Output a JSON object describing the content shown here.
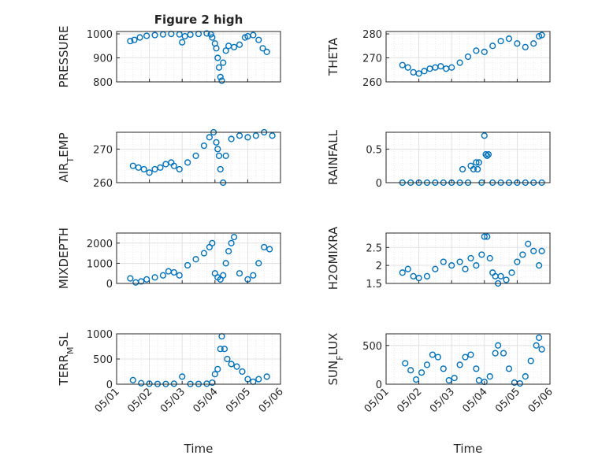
{
  "figure": {
    "title": "Figure 2 high",
    "xlabel": "Time",
    "date_ticks": [
      "05/01",
      "05/02",
      "05/03",
      "05/04",
      "05/05",
      "05/06"
    ],
    "marker_color": "#0072BD",
    "grid": true
  },
  "chart_data": [
    {
      "type": "scatter",
      "name": "pressure",
      "ylabel": "PRESSURE",
      "ylabel_sub": "",
      "ylabel_tail": "",
      "title": "Figure 2 high",
      "xlim": [
        "05/01",
        "05/06"
      ],
      "ylim": [
        800,
        1010
      ],
      "yticks": [
        800,
        900,
        1000
      ],
      "x": [
        "05/01 10:00",
        "05/01 13:00",
        "05/01 17:00",
        "05/01 22:00",
        "05/02 04:00",
        "05/02 10:00",
        "05/02 16:00",
        "05/02 22:00",
        "05/03 00:00",
        "05/03 02:00",
        "05/03 06:00",
        "05/03 12:00",
        "05/03 18:00",
        "05/03 21:00",
        "05/03 22:00",
        "05/04 00:00",
        "05/04 01:00",
        "05/04 02:00",
        "05/04 03:00",
        "05/04 04:00",
        "05/04 05:00",
        "05/04 06:00",
        "05/04 08:00",
        "05/04 10:00",
        "05/04 14:00",
        "05/04 18:00",
        "05/04 22:00",
        "05/05 00:00",
        "05/05 04:00",
        "05/05 08:00",
        "05/05 11:00",
        "05/05 14:00"
      ],
      "y": [
        970,
        975,
        985,
        992,
        995,
        998,
        1000,
        998,
        965,
        990,
        997,
        1000,
        1002,
        998,
        985,
        960,
        940,
        900,
        860,
        820,
        805,
        880,
        930,
        950,
        945,
        955,
        985,
        990,
        995,
        975,
        940,
        925
      ]
    },
    {
      "type": "scatter",
      "name": "theta",
      "ylabel": "THETA",
      "ylabel_sub": "",
      "ylabel_tail": "",
      "xlim": [
        "05/01",
        "05/06"
      ],
      "ylim": [
        260,
        281
      ],
      "yticks": [
        260,
        270,
        280
      ],
      "x": [
        "05/01 12:00",
        "05/01 16:00",
        "05/01 20:00",
        "05/02 00:00",
        "05/02 04:00",
        "05/02 08:00",
        "05/02 12:00",
        "05/02 16:00",
        "05/02 20:00",
        "05/03 00:00",
        "05/03 06:00",
        "05/03 12:00",
        "05/03 18:00",
        "05/04 00:00",
        "05/04 06:00",
        "05/04 12:00",
        "05/04 18:00",
        "05/05 00:00",
        "05/05 06:00",
        "05/05 12:00",
        "05/05 16:00",
        "05/05 18:00"
      ],
      "y": [
        267,
        266,
        264,
        263.5,
        264.5,
        265.5,
        266,
        266.5,
        265.5,
        266,
        268,
        270.5,
        273,
        272.5,
        275,
        277,
        278,
        276,
        274.5,
        276,
        279,
        279.5
      ]
    },
    {
      "type": "scatter",
      "name": "air_temp",
      "ylabel": "AIR",
      "ylabel_sub": "T",
      "ylabel_tail": "EMP",
      "xlim": [
        "05/01",
        "05/06"
      ],
      "ylim": [
        260,
        275
      ],
      "yticks": [
        260,
        270
      ],
      "x": [
        "05/01 12:00",
        "05/01 16:00",
        "05/01 20:00",
        "05/02 00:00",
        "05/02 04:00",
        "05/02 08:00",
        "05/02 12:00",
        "05/02 16:00",
        "05/02 18:00",
        "05/02 22:00",
        "05/03 04:00",
        "05/03 10:00",
        "05/03 16:00",
        "05/03 20:00",
        "05/03 23:00",
        "05/04 01:00",
        "05/04 02:00",
        "05/04 03:00",
        "05/04 04:00",
        "05/04 06:00",
        "05/04 08:00",
        "05/04 12:00",
        "05/04 18:00",
        "05/05 00:00",
        "05/05 06:00",
        "05/05 12:00",
        "05/05 18:00"
      ],
      "y": [
        265,
        264.5,
        264,
        263,
        264,
        264.5,
        265.5,
        266,
        265,
        264,
        266,
        268,
        271,
        273.5,
        275,
        272,
        270,
        268,
        264,
        260,
        268,
        273,
        274,
        273.5,
        274,
        275,
        274
      ]
    },
    {
      "type": "scatter",
      "name": "rainfall",
      "ylabel": "RAINFALL",
      "ylabel_sub": "",
      "ylabel_tail": "",
      "xlim": [
        "05/01",
        "05/06"
      ],
      "ylim": [
        0,
        0.75
      ],
      "yticks": [
        0,
        0.5
      ],
      "x": [
        "05/01 12:00",
        "05/01 18:00",
        "05/02 00:00",
        "05/02 06:00",
        "05/02 12:00",
        "05/02 18:00",
        "05/03 00:00",
        "05/03 06:00",
        "05/03 08:00",
        "05/03 12:00",
        "05/03 14:00",
        "05/03 16:00",
        "05/03 18:00",
        "05/03 19:00",
        "05/03 20:00",
        "05/03 22:00",
        "05/04 00:00",
        "05/04 01:00",
        "05/04 02:00",
        "05/04 03:00",
        "05/04 06:00",
        "05/04 12:00",
        "05/04 18:00",
        "05/05 00:00",
        "05/05 06:00",
        "05/05 12:00",
        "05/05 18:00"
      ],
      "y": [
        0,
        0,
        0,
        0,
        0,
        0,
        0,
        0,
        0.2,
        0,
        0.25,
        0.2,
        0.3,
        0.2,
        0.3,
        0,
        0.7,
        0.42,
        0.4,
        0.42,
        0,
        0,
        0,
        0,
        0,
        0,
        0
      ]
    },
    {
      "type": "scatter",
      "name": "mixdepth",
      "ylabel": "MIXDEPTH",
      "ylabel_sub": "",
      "ylabel_tail": "",
      "xlim": [
        "05/01",
        "05/06"
      ],
      "ylim": [
        0,
        2500
      ],
      "yticks": [
        0,
        1000,
        2000
      ],
      "x": [
        "05/01 10:00",
        "05/01 14:00",
        "05/01 18:00",
        "05/01 22:00",
        "05/02 04:00",
        "05/02 10:00",
        "05/02 14:00",
        "05/02 18:00",
        "05/02 22:00",
        "05/03 04:00",
        "05/03 10:00",
        "05/03 16:00",
        "05/03 20:00",
        "05/03 22:00",
        "05/04 00:00",
        "05/04 02:00",
        "05/04 04:00",
        "05/04 06:00",
        "05/04 08:00",
        "05/04 10:00",
        "05/04 12:00",
        "05/04 14:00",
        "05/04 18:00",
        "05/05 00:00",
        "05/05 04:00",
        "05/05 08:00",
        "05/05 12:00",
        "05/05 16:00"
      ],
      "y": [
        250,
        50,
        100,
        200,
        300,
        400,
        600,
        550,
        400,
        900,
        1200,
        1500,
        1800,
        2000,
        500,
        300,
        200,
        400,
        1000,
        1600,
        2000,
        2300,
        500,
        200,
        400,
        1000,
        1800,
        1700
      ]
    },
    {
      "type": "scatter",
      "name": "h2omixra",
      "ylabel": "H2OMIXRA",
      "ylabel_sub": "",
      "ylabel_tail": "",
      "xlim": [
        "05/01",
        "05/06"
      ],
      "ylim": [
        1.5,
        2.9
      ],
      "yticks": [
        1.5,
        2,
        2.5
      ],
      "x": [
        "05/01 12:00",
        "05/01 16:00",
        "05/01 20:00",
        "05/02 00:00",
        "05/02 06:00",
        "05/02 12:00",
        "05/02 18:00",
        "05/03 00:00",
        "05/03 06:00",
        "05/03 10:00",
        "05/03 14:00",
        "05/03 18:00",
        "05/03 22:00",
        "05/04 00:00",
        "05/04 02:00",
        "05/04 04:00",
        "05/04 06:00",
        "05/04 08:00",
        "05/04 10:00",
        "05/04 12:00",
        "05/04 16:00",
        "05/04 20:00",
        "05/05 00:00",
        "05/05 04:00",
        "05/05 08:00",
        "05/05 12:00",
        "05/05 16:00",
        "05/05 18:00"
      ],
      "y": [
        1.8,
        1.9,
        1.7,
        1.65,
        1.7,
        1.9,
        2.1,
        2.0,
        2.1,
        1.9,
        2.2,
        2.0,
        2.3,
        2.8,
        2.8,
        2.2,
        1.8,
        1.7,
        1.5,
        1.7,
        1.6,
        1.8,
        2.1,
        2.3,
        2.6,
        2.4,
        2.0,
        2.4
      ]
    },
    {
      "type": "scatter",
      "name": "terr_msl",
      "ylabel": "TERR",
      "ylabel_sub": "M",
      "ylabel_tail": "SL",
      "xlim": [
        "05/01",
        "05/06"
      ],
      "ylim": [
        0,
        1000
      ],
      "yticks": [
        0,
        500,
        1000
      ],
      "x": [
        "05/01 12:00",
        "05/01 18:00",
        "05/02 00:00",
        "05/02 06:00",
        "05/02 12:00",
        "05/02 18:00",
        "05/03 00:00",
        "05/03 06:00",
        "05/03 12:00",
        "05/03 18:00",
        "05/03 22:00",
        "05/04 00:00",
        "05/04 02:00",
        "05/04 04:00",
        "05/04 05:00",
        "05/04 07:00",
        "05/04 09:00",
        "05/04 12:00",
        "05/04 16:00",
        "05/04 20:00",
        "05/05 00:00",
        "05/05 04:00",
        "05/05 08:00",
        "05/05 14:00"
      ],
      "y": [
        80,
        20,
        10,
        5,
        5,
        10,
        150,
        5,
        5,
        10,
        30,
        200,
        300,
        700,
        950,
        700,
        500,
        400,
        350,
        250,
        100,
        50,
        100,
        150
      ]
    },
    {
      "type": "scatter",
      "name": "sun_flux",
      "ylabel": "SUN",
      "ylabel_sub": "F",
      "ylabel_tail": "LUX",
      "xlim": [
        "05/01",
        "05/06"
      ],
      "ylim": [
        0,
        650
      ],
      "yticks": [
        0,
        500
      ],
      "x": [
        "05/01 14:00",
        "05/01 18:00",
        "05/01 22:00",
        "05/02 02:00",
        "05/02 06:00",
        "05/02 10:00",
        "05/02 14:00",
        "05/02 18:00",
        "05/02 22:00",
        "05/03 02:00",
        "05/03 06:00",
        "05/03 10:00",
        "05/03 14:00",
        "05/03 18:00",
        "05/03 20:00",
        "05/04 00:00",
        "05/04 04:00",
        "05/04 08:00",
        "05/04 10:00",
        "05/04 14:00",
        "05/04 18:00",
        "05/04 22:00",
        "05/05 02:00",
        "05/05 06:00",
        "05/05 10:00",
        "05/05 14:00",
        "05/05 16:00",
        "05/05 18:00"
      ],
      "y": [
        270,
        180,
        60,
        150,
        250,
        380,
        350,
        200,
        50,
        80,
        250,
        350,
        380,
        200,
        50,
        30,
        100,
        400,
        500,
        400,
        200,
        20,
        10,
        100,
        300,
        500,
        600,
        450
      ]
    }
  ]
}
